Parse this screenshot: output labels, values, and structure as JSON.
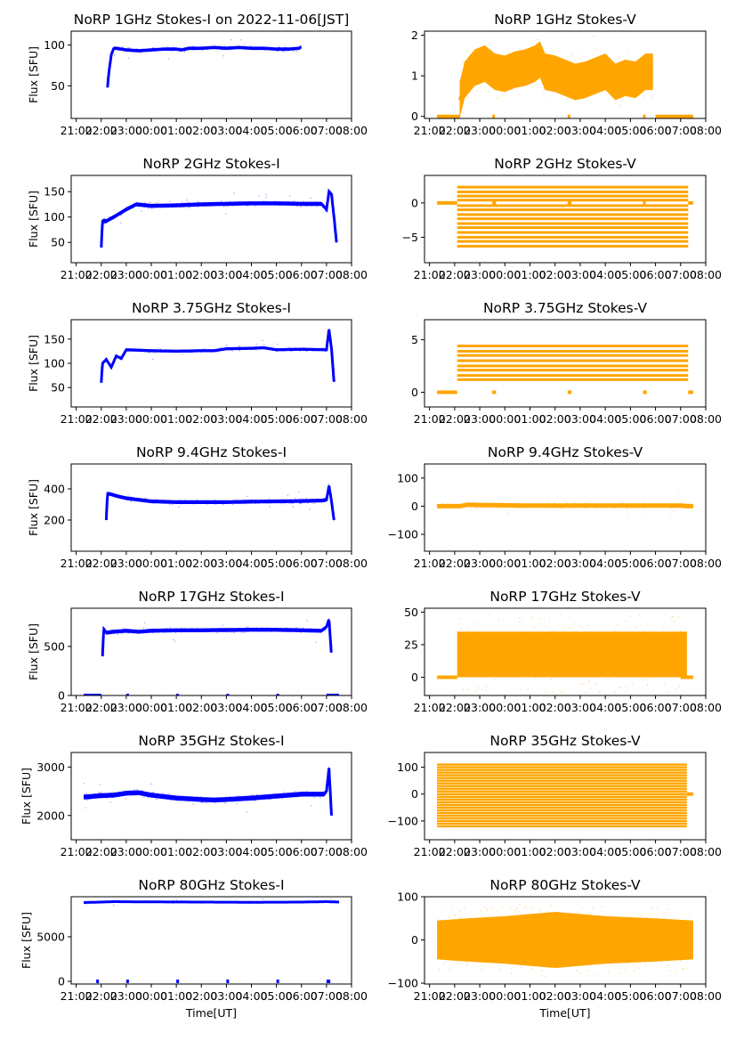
{
  "figure": {
    "xtick_labels": [
      "21:00",
      "22:00",
      "23:00",
      "00:00",
      "01:00",
      "02:00",
      "03:00",
      "04:00",
      "05:00",
      "06:00",
      "07:00",
      "08:00"
    ],
    "x_range_hours": [
      -3.2,
      8.0
    ],
    "x_tick_hours": [
      -3,
      -2,
      -1,
      0,
      1,
      2,
      3,
      4,
      5,
      6,
      7,
      8
    ],
    "ylabel_left": "Flux [SFU]",
    "xlabel_bottom": "Time[UT]",
    "colors": {
      "stokes_i": "#0000ff",
      "stokes_v": "#ffa500"
    }
  },
  "chart_data": [
    {
      "type": "scatter",
      "title": "NoRP 1GHz Stokes-I on 2022-11-06[JST]",
      "ylabel": "Flux [SFU]",
      "xlabel": "",
      "ylim": [
        10,
        117
      ],
      "yticks": [
        50,
        100
      ],
      "series_color": "stokes_i",
      "x": [
        -1.75,
        -1.7,
        -1.6,
        -1.5,
        -1.4,
        -1.0,
        -0.5,
        0,
        0.5,
        1.0,
        1.2,
        1.5,
        2.0,
        2.5,
        3.0,
        3.5,
        4.0,
        4.5,
        5.0,
        5.5,
        5.9,
        6.0
      ],
      "values": [
        48,
        65,
        88,
        96,
        96,
        94,
        93,
        94,
        95,
        95,
        94,
        96,
        96,
        97,
        96,
        97,
        96,
        96,
        95,
        95,
        96,
        98
      ],
      "spread": 2
    },
    {
      "type": "scatter",
      "title": "NoRP 1GHz Stokes-V",
      "ylabel": "",
      "xlabel": "",
      "ylim": [
        -0.05,
        2.1
      ],
      "yticks": [
        0,
        1,
        2
      ],
      "series_color": "stokes_v",
      "x": [
        -1.8,
        -1.6,
        -1.2,
        -0.8,
        -0.4,
        0,
        0.4,
        0.8,
        1.2,
        1.4,
        1.6,
        2.0,
        2.4,
        2.8,
        3.2,
        3.6,
        4.0,
        4.4,
        4.8,
        5.2,
        5.6,
        5.9
      ],
      "values": [
        0.4,
        0.9,
        1.2,
        1.3,
        1.1,
        1.05,
        1.15,
        1.2,
        1.3,
        1.4,
        1.1,
        1.05,
        0.95,
        0.85,
        0.9,
        1.0,
        1.1,
        0.85,
        0.95,
        0.9,
        1.1,
        1.1
      ],
      "spread": 0.45,
      "zero_segments": [
        [
          -2.7,
          -1.8
        ],
        [
          -0.5,
          -0.4
        ],
        [
          2.5,
          2.6
        ],
        [
          5.5,
          5.55
        ],
        [
          6.0,
          7.5
        ]
      ]
    },
    {
      "type": "scatter",
      "title": "NoRP 2GHz Stokes-I",
      "ylabel": "Flux [SFU]",
      "xlabel": "",
      "ylim": [
        10,
        182
      ],
      "yticks": [
        50,
        100,
        150
      ],
      "series_color": "stokes_i",
      "x": [
        -2.0,
        -1.95,
        -1.8,
        -1.5,
        -1.0,
        -0.6,
        0,
        1,
        2,
        3,
        4,
        5,
        6,
        6.8,
        7.0,
        7.1,
        7.2,
        7.3,
        7.4
      ],
      "values": [
        40,
        92,
        92,
        100,
        115,
        125,
        122,
        123,
        125,
        126,
        127,
        127,
        126,
        126,
        115,
        150,
        145,
        100,
        50
      ],
      "spread": 4
    },
    {
      "type": "scatter",
      "title": "NoRP 2GHz Stokes-V",
      "ylabel": "",
      "xlabel": "",
      "ylim": [
        -8.7,
        4.0
      ],
      "yticks": [
        -5,
        0
      ],
      "series_color": "stokes_v",
      "levels": [
        2.3,
        1.6,
        1.0,
        0.4,
        -0.4,
        -1.0,
        -1.7,
        -2.3,
        -3.0,
        -3.6,
        -4.3,
        -5.0,
        -5.6,
        -6.3
      ],
      "band_x": [
        -1.9,
        7.3
      ],
      "zero_segments": [
        [
          -2.7,
          -1.9
        ],
        [
          -0.5,
          -0.35
        ],
        [
          2.5,
          2.65
        ],
        [
          5.5,
          5.6
        ],
        [
          7.3,
          7.5
        ]
      ]
    },
    {
      "type": "scatter",
      "title": "NoRP 3.75GHz Stokes-I",
      "ylabel": "Flux [SFU]",
      "xlabel": "",
      "ylim": [
        10,
        190
      ],
      "yticks": [
        50,
        100,
        150
      ],
      "series_color": "stokes_i",
      "x": [
        -2.0,
        -1.95,
        -1.8,
        -1.6,
        -1.4,
        -1.2,
        -1.0,
        0,
        1,
        2,
        2.5,
        3,
        4,
        4.5,
        5,
        6,
        7.0,
        7.1,
        7.2,
        7.3
      ],
      "values": [
        60,
        100,
        108,
        92,
        115,
        110,
        128,
        126,
        125,
        126,
        126,
        130,
        131,
        132,
        128,
        129,
        128,
        170,
        130,
        62
      ],
      "spread": 3
    },
    {
      "type": "scatter",
      "title": "NoRP 3.75GHz Stokes-V",
      "ylabel": "",
      "xlabel": "",
      "ylim": [
        -1.4,
        6.9
      ],
      "yticks": [
        0,
        5
      ],
      "series_color": "stokes_v",
      "levels": [
        4.4,
        3.9,
        3.5,
        3.0,
        2.5,
        2.1,
        1.6,
        1.2
      ],
      "band_x": [
        -1.9,
        7.3
      ],
      "zero_segments": [
        [
          -2.7,
          -1.9
        ],
        [
          -0.5,
          -0.35
        ],
        [
          2.5,
          2.65
        ],
        [
          5.5,
          5.65
        ],
        [
          7.3,
          7.5
        ]
      ]
    },
    {
      "type": "scatter",
      "title": "NoRP 9.4GHz Stokes-I",
      "ylabel": "Flux [SFU]",
      "xlabel": "",
      "ylim": [
        0,
        560
      ],
      "yticks": [
        200,
        400
      ],
      "series_color": "stokes_i",
      "x": [
        -1.8,
        -1.75,
        -1.6,
        -1.4,
        -1.0,
        -0.5,
        0,
        1,
        2,
        3,
        4,
        5,
        6,
        6.8,
        7.0,
        7.1,
        7.2,
        7.3
      ],
      "values": [
        200,
        370,
        365,
        355,
        340,
        330,
        320,
        315,
        315,
        315,
        318,
        320,
        322,
        325,
        330,
        420,
        320,
        200
      ],
      "spread": 12
    },
    {
      "type": "scatter",
      "title": "NoRP 9.4GHz Stokes-V",
      "ylabel": "",
      "xlabel": "",
      "ylim": [
        -160,
        150
      ],
      "yticks": [
        -100,
        0,
        100
      ],
      "series_color": "stokes_v",
      "x": [
        -2.7,
        -1.8,
        -1.5,
        -1.0,
        0,
        1,
        2,
        3,
        4,
        5,
        6,
        7,
        7.3,
        7.5
      ],
      "values": [
        0,
        0,
        5,
        4,
        3,
        2,
        2,
        2,
        2,
        2,
        2,
        2,
        0,
        0
      ],
      "spread": 8
    },
    {
      "type": "scatter",
      "title": "NoRP 17GHz Stokes-I",
      "ylabel": "Flux [SFU]",
      "xlabel": "",
      "ylim": [
        0,
        890
      ],
      "yticks": [
        0,
        500
      ],
      "series_color": "stokes_i",
      "x": [
        -1.95,
        -1.9,
        -1.8,
        -1.5,
        -1.0,
        -0.5,
        0,
        1,
        2,
        3,
        4,
        5,
        6,
        6.8,
        7.0,
        7.1,
        7.2
      ],
      "values": [
        400,
        680,
        640,
        650,
        660,
        650,
        660,
        665,
        665,
        668,
        670,
        670,
        665,
        660,
        700,
        780,
        400
      ],
      "spread": 20,
      "zero_segments": [
        [
          -2.7,
          -2.0
        ],
        [
          -1.0,
          -0.95
        ],
        [
          1.0,
          1.05
        ],
        [
          3.0,
          3.05
        ],
        [
          5.0,
          5.05
        ],
        [
          7.0,
          7.5
        ]
      ]
    },
    {
      "type": "scatter",
      "title": "NoRP 17GHz Stokes-V",
      "ylabel": "",
      "xlabel": "",
      "ylim": [
        -14,
        53
      ],
      "yticks": [
        0,
        25,
        50
      ],
      "series_color": "stokes_v",
      "band_x": [
        -1.9,
        7.25
      ],
      "band_y": [
        0,
        35
      ],
      "zero_segments": [
        [
          -2.7,
          -1.9
        ],
        [
          7.0,
          7.5
        ]
      ]
    },
    {
      "type": "scatter",
      "title": "NoRP 35GHz Stokes-I",
      "ylabel": "Flux [SFU]",
      "xlabel": "",
      "ylim": [
        1500,
        3300
      ],
      "yticks": [
        2000,
        3000
      ],
      "series_color": "stokes_i",
      "x": [
        -2.7,
        -2.0,
        -1.5,
        -1.0,
        -0.5,
        0,
        1,
        2,
        2.5,
        3,
        4,
        5,
        6,
        6.9,
        7.0,
        7.1,
        7.2
      ],
      "values": [
        2380,
        2410,
        2420,
        2460,
        2470,
        2420,
        2360,
        2330,
        2320,
        2330,
        2360,
        2400,
        2440,
        2440,
        2500,
        2980,
        2000
      ],
      "spread": 50
    },
    {
      "type": "scatter",
      "title": "NoRP 35GHz Stokes-V",
      "ylabel": "",
      "xlabel": "",
      "ylim": [
        -170,
        155
      ],
      "yticks": [
        -100,
        0,
        100
      ],
      "series_color": "stokes_v",
      "band_x": [
        -2.7,
        7.25
      ],
      "levels_step": 10,
      "levels_range": [
        -120,
        110
      ],
      "zero_segments": [
        [
          7.25,
          7.5
        ]
      ]
    },
    {
      "type": "scatter",
      "title": "NoRP 80GHz Stokes-I",
      "ylabel": "Flux [SFU]",
      "xlabel": "Time[UT]",
      "ylim": [
        -300,
        9500
      ],
      "yticks": [
        0,
        5000
      ],
      "series_color": "stokes_i",
      "x": [
        -2.7,
        -2.0,
        -1.5,
        0,
        2,
        4,
        6,
        7.0,
        7.5
      ],
      "values": [
        8850,
        8900,
        8950,
        8920,
        8900,
        8880,
        8900,
        8950,
        8900
      ],
      "spread": 80,
      "zero_segments": [
        [
          -2.2,
          -2.1
        ],
        [
          -1.0,
          -0.95
        ],
        [
          1.0,
          1.05
        ],
        [
          3.0,
          3.05
        ],
        [
          5.0,
          5.05
        ],
        [
          7.0,
          7.15
        ]
      ]
    },
    {
      "type": "scatter",
      "title": "NoRP 80GHz Stokes-V",
      "ylabel": "",
      "xlabel": "Time[UT]",
      "ylim": [
        -102,
        100
      ],
      "yticks": [
        -100,
        0,
        100
      ],
      "series_color": "stokes_v",
      "band_x": [
        -2.7,
        7.5
      ],
      "envelope": [
        [
          -2.7,
          45
        ],
        [
          -1.5,
          50
        ],
        [
          0,
          55
        ],
        [
          2,
          65
        ],
        [
          4,
          55
        ],
        [
          6,
          50
        ],
        [
          7.5,
          45
        ]
      ]
    }
  ]
}
